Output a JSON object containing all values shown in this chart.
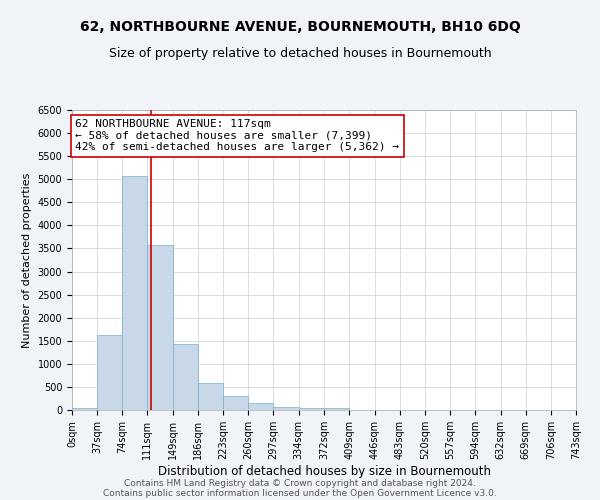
{
  "title": "62, NORTHBOURNE AVENUE, BOURNEMOUTH, BH10 6DQ",
  "subtitle": "Size of property relative to detached houses in Bournemouth",
  "xlabel": "Distribution of detached houses by size in Bournemouth",
  "ylabel": "Number of detached properties",
  "bar_edges": [
    0,
    37,
    74,
    111,
    149,
    186,
    223,
    260,
    297,
    334,
    372,
    409,
    446,
    483,
    520,
    557,
    594,
    632,
    669,
    706,
    743
  ],
  "bar_heights": [
    50,
    1620,
    5080,
    3580,
    1430,
    590,
    300,
    150,
    75,
    50,
    50,
    0,
    0,
    0,
    0,
    0,
    0,
    0,
    0,
    0
  ],
  "bar_color": "#c8d8e8",
  "bar_edgecolor": "#7ab0cc",
  "vline_x": 117,
  "vline_color": "#cc0000",
  "annotation_text": "62 NORTHBOURNE AVENUE: 117sqm\n← 58% of detached houses are smaller (7,399)\n42% of semi-detached houses are larger (5,362) →",
  "annotation_box_color": "#ffffff",
  "annotation_box_edgecolor": "#cc0000",
  "ylim": [
    0,
    6500
  ],
  "xlim": [
    0,
    743
  ],
  "yticks": [
    0,
    500,
    1000,
    1500,
    2000,
    2500,
    3000,
    3500,
    4000,
    4500,
    5000,
    5500,
    6000,
    6500
  ],
  "xtick_labels": [
    "0sqm",
    "37sqm",
    "74sqm",
    "111sqm",
    "149sqm",
    "186sqm",
    "223sqm",
    "260sqm",
    "297sqm",
    "334sqm",
    "372sqm",
    "409sqm",
    "446sqm",
    "483sqm",
    "520sqm",
    "557sqm",
    "594sqm",
    "632sqm",
    "669sqm",
    "706sqm",
    "743sqm"
  ],
  "footer1": "Contains HM Land Registry data © Crown copyright and database right 2024.",
  "footer2": "Contains public sector information licensed under the Open Government Licence v3.0.",
  "bg_color": "#f0f4f8",
  "plot_bg_color": "#ffffff",
  "grid_color": "#c8d0d8",
  "title_fontsize": 10,
  "subtitle_fontsize": 9,
  "xlabel_fontsize": 8.5,
  "ylabel_fontsize": 8,
  "tick_fontsize": 7,
  "annotation_fontsize": 8,
  "footer_fontsize": 6.5
}
